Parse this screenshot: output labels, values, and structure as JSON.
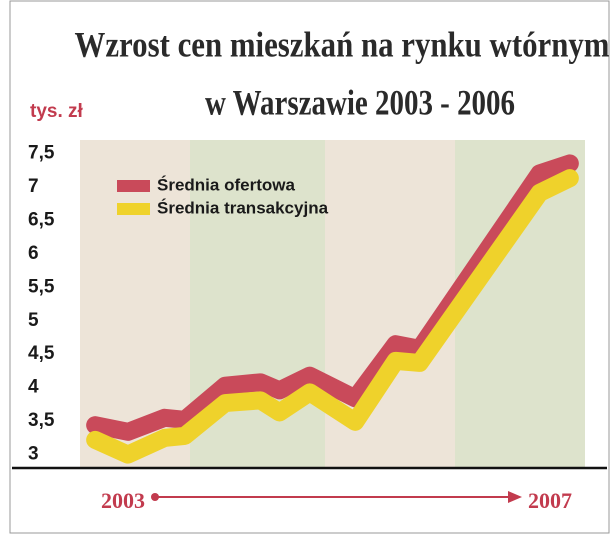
{
  "chart_data": {
    "type": "line",
    "title": [
      "Wzrost cen mieszkań na rynku wtórnym",
      "w Warszawie 2003 - 2006"
    ],
    "ylabel": "tys. zł",
    "x": [
      2003.12,
      2003.38,
      2003.67,
      2003.83,
      2004.15,
      2004.43,
      2004.58,
      2004.82,
      2005.18,
      2005.5,
      2005.69,
      2006.64,
      2006.88
    ],
    "series": [
      {
        "name": "Średnia ofertowa",
        "color": "#c94a5a",
        "values": [
          3.44,
          3.34,
          3.55,
          3.52,
          4.03,
          4.08,
          3.96,
          4.18,
          3.84,
          4.65,
          4.58,
          7.2,
          7.35
        ]
      },
      {
        "name": "Średnia transakcyjna",
        "color": "#efd22b",
        "values": [
          3.22,
          3.0,
          3.25,
          3.28,
          3.77,
          3.81,
          3.63,
          3.93,
          3.49,
          4.4,
          4.37,
          6.91,
          7.13
        ]
      }
    ],
    "xlim": [
      2003,
      2007
    ],
    "xticks": [
      2003,
      2007
    ],
    "ylim": [
      2.8,
      7.7
    ],
    "yticks": [
      3,
      {
        "value": 3.5,
        "label": "3,5"
      },
      4,
      {
        "value": 4.5,
        "label": "4,5"
      },
      5,
      {
        "value": 5.5,
        "label": "5,5"
      },
      6,
      {
        "value": 6.5,
        "label": "6,5"
      },
      7,
      {
        "value": 7.5,
        "label": "7,5"
      }
    ],
    "grid": false,
    "legend": "upper left"
  }
}
